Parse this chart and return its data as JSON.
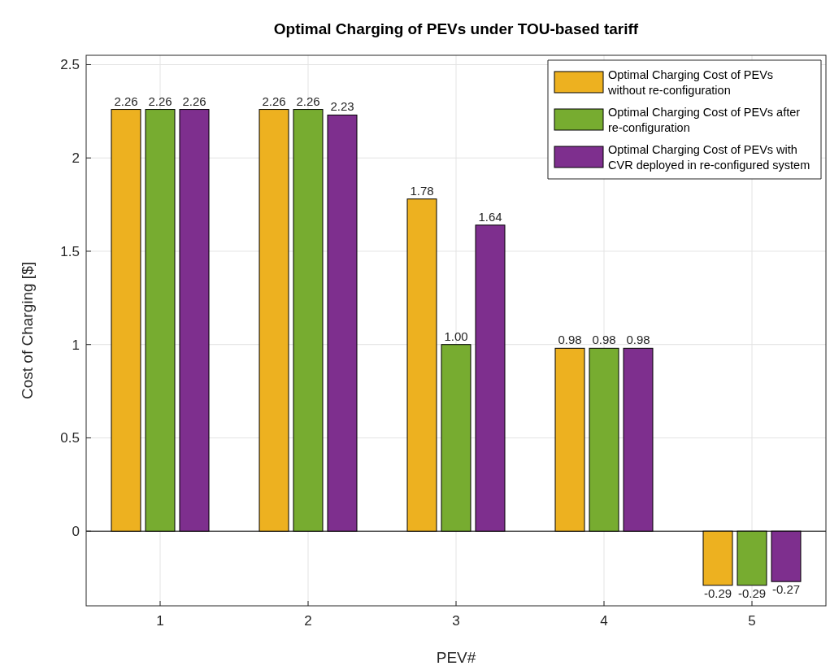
{
  "chart_data": {
    "type": "bar",
    "title": "Optimal Charging of PEVs under TOU-based tariff",
    "xlabel": "PEV#",
    "ylabel": "Cost of Charging [$]",
    "categories": [
      "1",
      "2",
      "3",
      "4",
      "5"
    ],
    "series": [
      {
        "name": "Optimal Charging Cost of PEVs\nwithout re-configuration",
        "color": "#edb120",
        "values": [
          2.26,
          2.26,
          1.78,
          0.98,
          -0.29
        ],
        "value_labels": [
          "2.26",
          "2.26",
          "1.78",
          "0.98",
          "-0.29"
        ]
      },
      {
        "name": "Optimal Charging Cost of PEVs after\nre-configuration",
        "color": "#77ac30",
        "values": [
          2.26,
          2.26,
          1.0,
          0.98,
          -0.29
        ],
        "value_labels": [
          "2.26",
          "2.26",
          "1.00",
          "0.98",
          "-0.29"
        ]
      },
      {
        "name": "Optimal Charging Cost of PEVs with\nCVR deployed in re-configured system",
        "color": "#7e2f8e",
        "values": [
          2.26,
          2.23,
          1.64,
          0.98,
          -0.27
        ],
        "value_labels": [
          "2.26",
          "2.23",
          "1.64",
          "0.98",
          "-0.27"
        ]
      }
    ],
    "ylim": [
      -0.4,
      2.55
    ],
    "yticks": [
      0,
      0.5,
      1,
      1.5,
      2,
      2.5
    ],
    "grid": true,
    "legend": "top right"
  }
}
